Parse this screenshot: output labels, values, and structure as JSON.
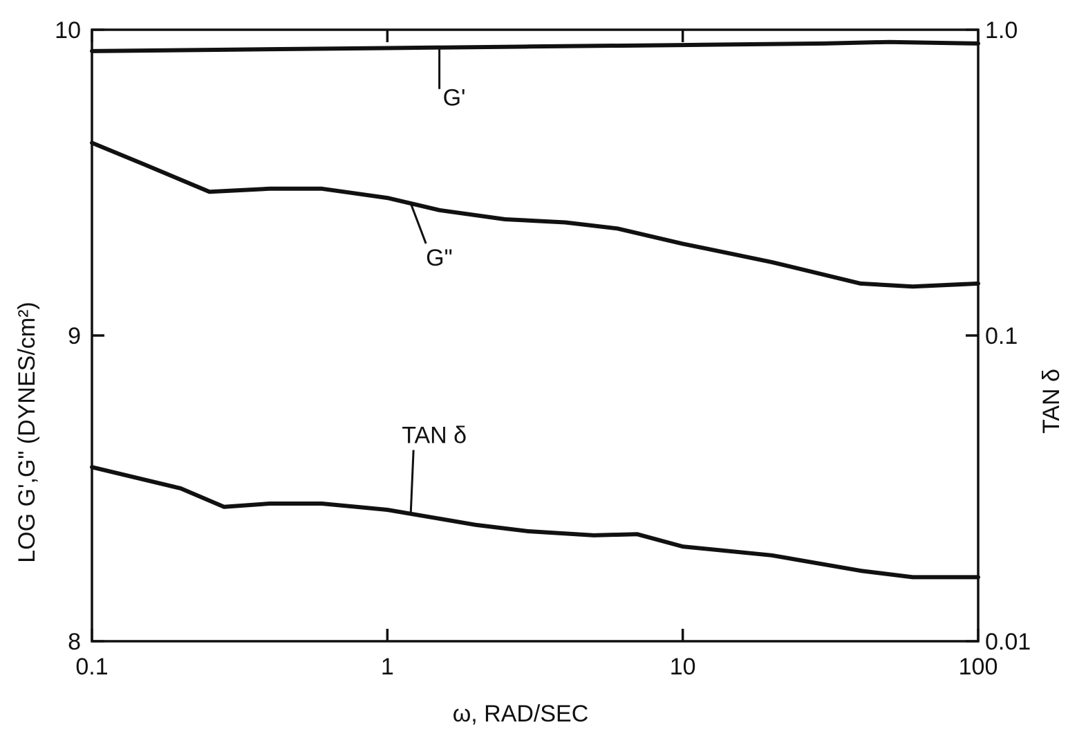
{
  "chart_data": {
    "type": "line",
    "title": "",
    "xlabel": "ω, RAD/SEC",
    "ylabel_left": "LOG G',G\" (DYNES/cm²)",
    "ylabel_right": "TAN δ",
    "x_scale": "log",
    "xlim": [
      0.1,
      100
    ],
    "ylim_left": [
      8,
      10
    ],
    "ylim_right": [
      0.01,
      1.0
    ],
    "y_right_scale": "log",
    "x_ticks": [
      "0.1",
      "1",
      "10",
      "100"
    ],
    "y_left_ticks": [
      "8",
      "9",
      "10"
    ],
    "y_right_ticks": [
      "0.01",
      "0.1",
      "1.0"
    ],
    "grid": false,
    "legend": "none",
    "series": [
      {
        "name": "G'",
        "axis": "left",
        "x": [
          0.1,
          0.3,
          1,
          3,
          10,
          30,
          50,
          100
        ],
        "y": [
          9.93,
          9.935,
          9.94,
          9.945,
          9.95,
          9.955,
          9.96,
          9.955
        ]
      },
      {
        "name": "G\"",
        "axis": "left",
        "x": [
          0.1,
          0.15,
          0.25,
          0.4,
          0.6,
          1,
          1.5,
          2.5,
          4,
          6,
          10,
          20,
          40,
          60,
          100
        ],
        "y": [
          9.63,
          9.56,
          9.47,
          9.48,
          9.48,
          9.45,
          9.41,
          9.38,
          9.37,
          9.35,
          9.3,
          9.24,
          9.17,
          9.16,
          9.17
        ]
      },
      {
        "name": "TAN δ",
        "axis": "right",
        "x": [
          0.1,
          0.2,
          0.28,
          0.4,
          0.6,
          1,
          2,
          3,
          5,
          7,
          10,
          20,
          40,
          60,
          100
        ],
        "y": [
          0.0371,
          0.0316,
          0.0275,
          0.0282,
          0.0282,
          0.0269,
          0.024,
          0.0229,
          0.0222,
          0.0224,
          0.0204,
          0.0191,
          0.017,
          0.0162,
          0.0162
        ]
      }
    ],
    "annotations": [
      {
        "text": "G'",
        "series": "G'"
      },
      {
        "text": "G\"",
        "series": "G\""
      },
      {
        "text": "TAN δ",
        "series": "TAN δ"
      }
    ]
  }
}
